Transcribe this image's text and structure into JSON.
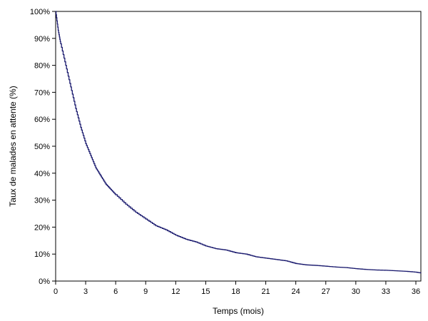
{
  "chart_data": {
    "type": "line",
    "title": "",
    "xlabel": "Temps (mois)",
    "ylabel": "Taux de malades en attente (%)",
    "xlim": [
      0,
      36.5
    ],
    "ylim": [
      0,
      100
    ],
    "x_ticks": [
      0,
      3,
      6,
      9,
      12,
      15,
      18,
      21,
      24,
      27,
      30,
      33,
      36
    ],
    "y_ticks": [
      0,
      10,
      20,
      30,
      40,
      50,
      60,
      70,
      80,
      90,
      100
    ],
    "x_tick_labels": [
      "0",
      "3",
      "6",
      "9",
      "12",
      "15",
      "18",
      "21",
      "24",
      "27",
      "30",
      "33",
      "36"
    ],
    "y_tick_labels": [
      "0%",
      "10%",
      "20%",
      "30%",
      "40%",
      "50%",
      "60%",
      "70%",
      "80%",
      "90%",
      "100%"
    ],
    "grid": false,
    "legend": "none",
    "line_color": "#1a1a6e",
    "series": [
      {
        "x": [
          0,
          0.25,
          0.5,
          1,
          1.5,
          2,
          2.5,
          3,
          3.5,
          4,
          4.5,
          5,
          5.5,
          6,
          7,
          8,
          9,
          10,
          11,
          12,
          13,
          14,
          15,
          16,
          17,
          18,
          19,
          20,
          21,
          22,
          23,
          24,
          25,
          26,
          27,
          28,
          29,
          30,
          31,
          32,
          33,
          34,
          35,
          36,
          36.5
        ],
        "y": [
          100,
          93,
          88,
          80,
          72,
          64,
          57,
          51,
          46.5,
          42,
          39,
          36,
          34,
          32,
          28.5,
          25.5,
          23,
          20.5,
          19,
          17,
          15.5,
          14.5,
          13,
          12,
          11.5,
          10.5,
          10,
          9,
          8.5,
          8,
          7.5,
          6.5,
          6,
          5.8,
          5.5,
          5.2,
          5,
          4.6,
          4.3,
          4.1,
          4,
          3.8,
          3.6,
          3.3,
          3
        ]
      }
    ]
  }
}
